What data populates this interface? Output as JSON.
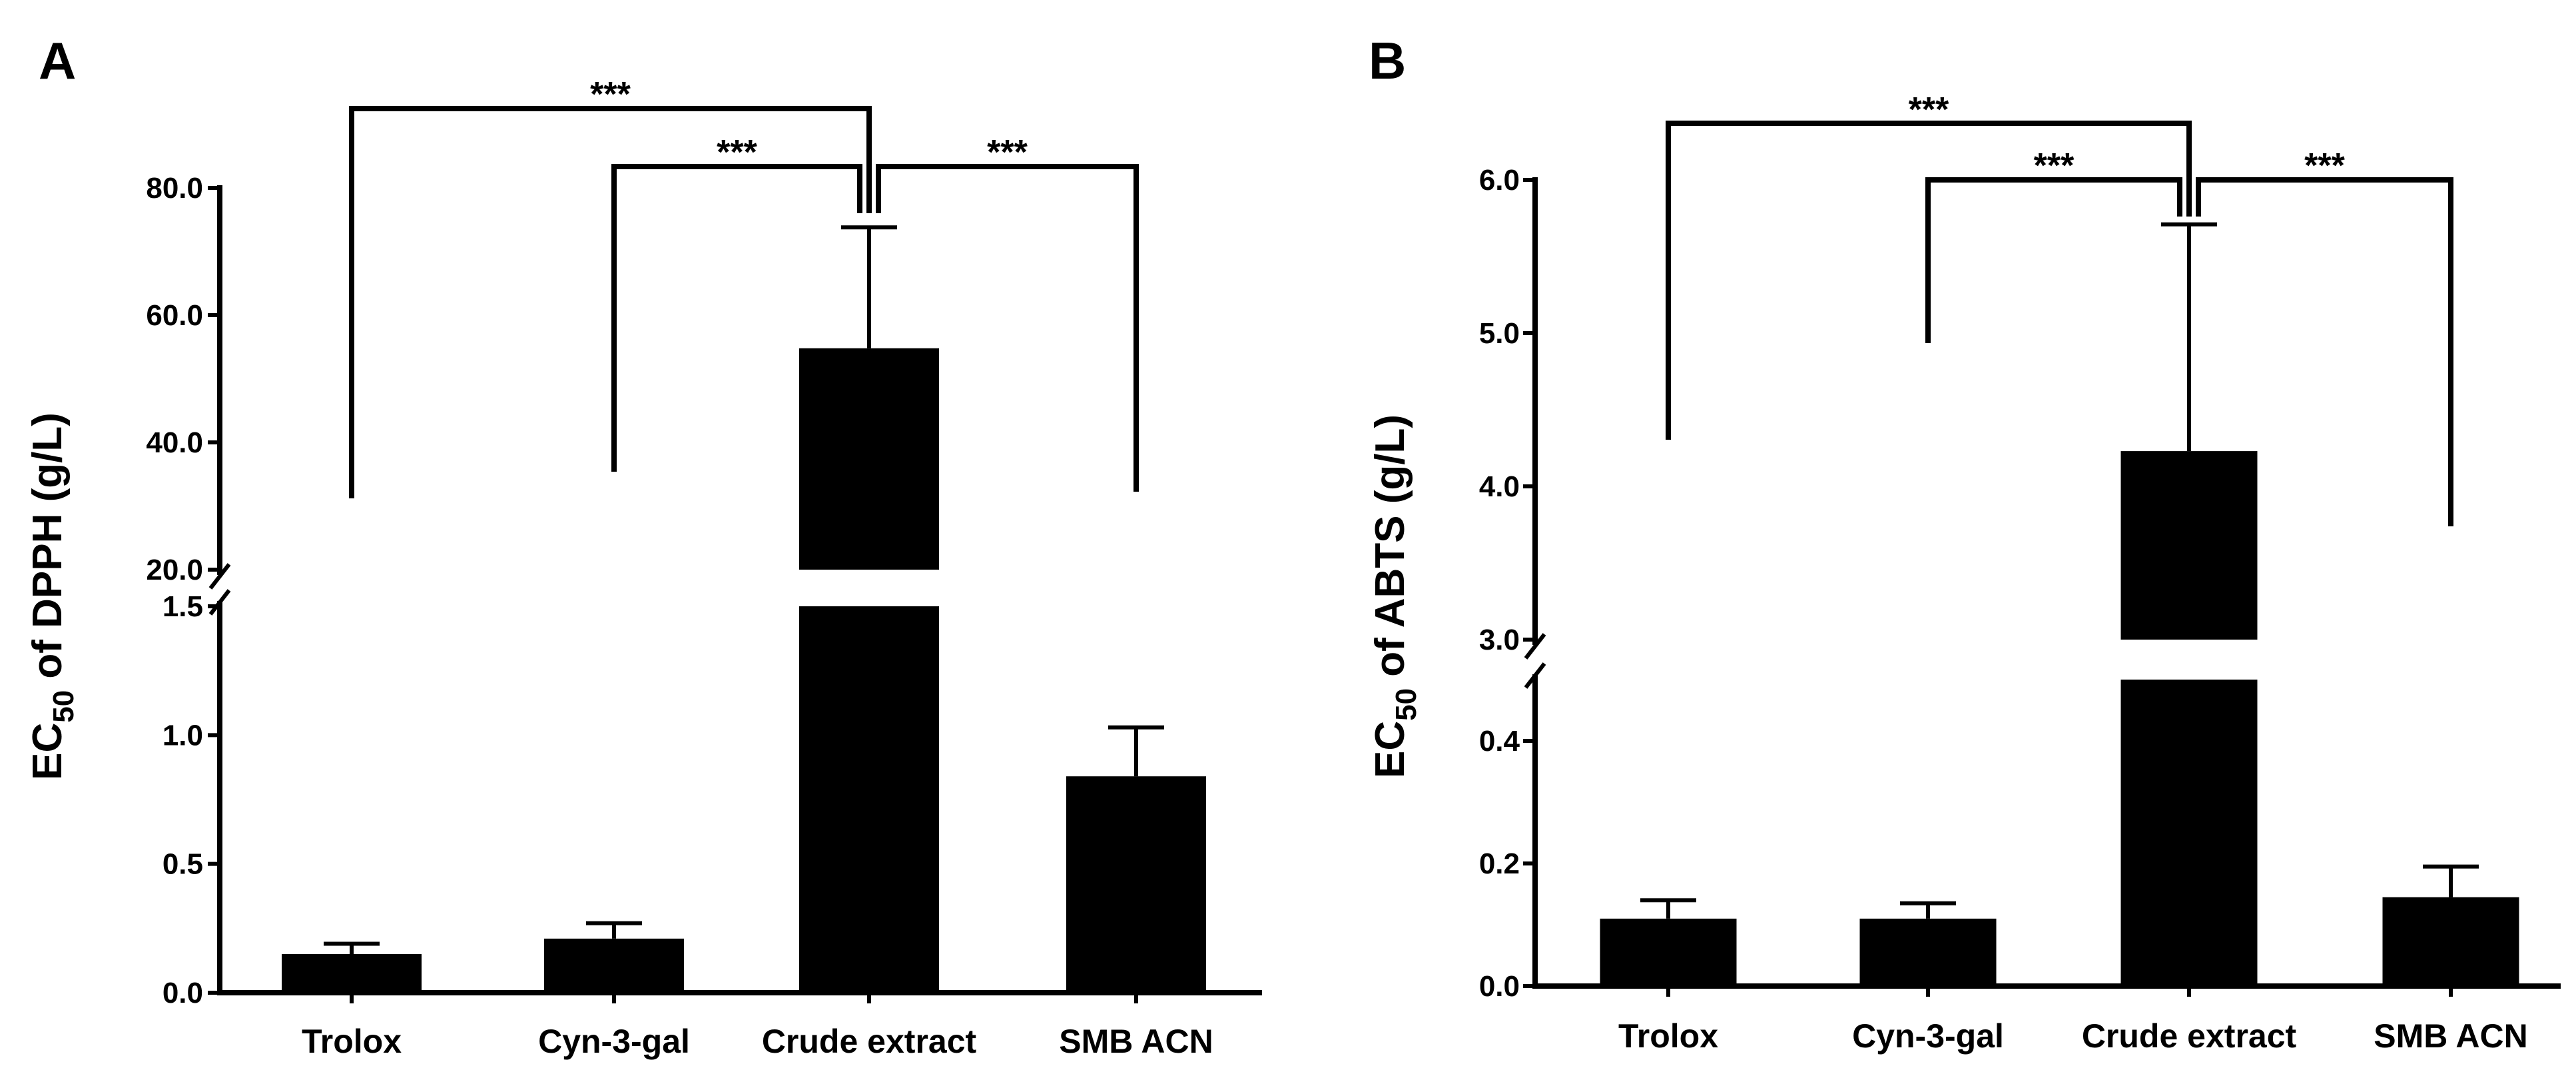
{
  "chart_data": [
    {
      "panel": "A",
      "type": "bar",
      "ylabel_main": "EC",
      "ylabel_sub": "50",
      "ylabel_rest": " of DPPH  (g/L)",
      "categories": [
        "Trolox",
        "Cyn-3-gal",
        "Crude extract",
        "SMB ACN"
      ],
      "values": [
        0.15,
        0.21,
        54.8,
        0.84
      ],
      "errors": [
        0.04,
        0.06,
        19.0,
        0.19
      ],
      "axis_lower": {
        "range": [
          0,
          1.5
        ],
        "ticks": [
          0.0,
          0.5,
          1.0,
          1.5
        ],
        "tick_labels": [
          "0.0",
          "0.5",
          "1.0",
          "1.5"
        ]
      },
      "axis_upper": {
        "range": [
          20,
          80
        ],
        "ticks": [
          20.0,
          40.0,
          60.0,
          80.0
        ],
        "tick_labels": [
          "20.0",
          "40.0",
          "60.0",
          "80.0"
        ]
      },
      "significance": [
        {
          "from": "Trolox",
          "to": "Crude extract",
          "label": "***"
        },
        {
          "from": "Cyn-3-gal",
          "to": "Crude extract",
          "label": "***"
        },
        {
          "from": "Crude extract",
          "to": "SMB ACN",
          "label": "***"
        }
      ]
    },
    {
      "panel": "B",
      "type": "bar",
      "ylabel_main": "EC",
      "ylabel_sub": "50",
      "ylabel_rest": " of ABTS (g/L)",
      "categories": [
        "Trolox",
        "Cyn-3-gal",
        "Crude extract",
        "SMB ACN"
      ],
      "values": [
        0.11,
        0.11,
        4.23,
        0.145
      ],
      "errors": [
        0.03,
        0.025,
        1.48,
        0.05
      ],
      "axis_lower": {
        "range": [
          0,
          0.5
        ],
        "ticks": [
          0.0,
          0.2,
          0.4
        ],
        "tick_labels": [
          "0.0",
          "0.2",
          "0.4"
        ]
      },
      "axis_upper": {
        "range": [
          3.0,
          6.0
        ],
        "ticks": [
          3.0,
          4.0,
          5.0,
          6.0
        ],
        "tick_labels": [
          "3.0",
          "4.0",
          "5.0",
          "6.0"
        ]
      },
      "significance": [
        {
          "from": "Trolox",
          "to": "Crude extract",
          "label": "***"
        },
        {
          "from": "Cyn-3-gal",
          "to": "Crude extract",
          "label": "***"
        },
        {
          "from": "Crude extract",
          "to": "SMB ACN",
          "label": "***"
        }
      ]
    }
  ]
}
